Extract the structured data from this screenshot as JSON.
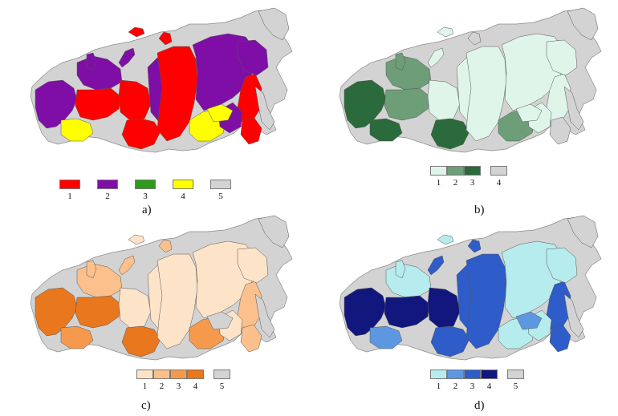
{
  "panels": [
    {
      "label": "a)",
      "legend": [
        {
          "label": "1",
          "color": "#ff0000"
        },
        {
          "label": "2",
          "color": "#7f0ea6"
        },
        {
          "label": "3",
          "color": "#2e9a19"
        },
        {
          "label": "4",
          "color": "#ffff00"
        },
        {
          "label": "5",
          "color": "#d3d3d3"
        }
      ]
    },
    {
      "label": "b)",
      "legend": [
        {
          "label": "1",
          "color": "#dff5ea"
        },
        {
          "label": "2",
          "color": "#6e9e78"
        },
        {
          "label": "3",
          "color": "#2a6a3b"
        },
        {
          "label": "4",
          "color": "#d3d3d3"
        }
      ]
    },
    {
      "label": "c)",
      "legend": [
        {
          "label": "1",
          "color": "#fde3c8"
        },
        {
          "label": "2",
          "color": "#fbc08c"
        },
        {
          "label": "3",
          "color": "#f59a4c"
        },
        {
          "label": "4",
          "color": "#e8771e"
        },
        {
          "label": "5",
          "color": "#d3d3d3"
        }
      ]
    },
    {
      "label": "d)",
      "legend": [
        {
          "label": "1",
          "color": "#b6ecee"
        },
        {
          "label": "2",
          "color": "#5d97e0"
        },
        {
          "label": "3",
          "color": "#2e5cc8"
        },
        {
          "label": "4",
          "color": "#12177e"
        },
        {
          "label": "5",
          "color": "#d3d3d3"
        }
      ]
    }
  ]
}
